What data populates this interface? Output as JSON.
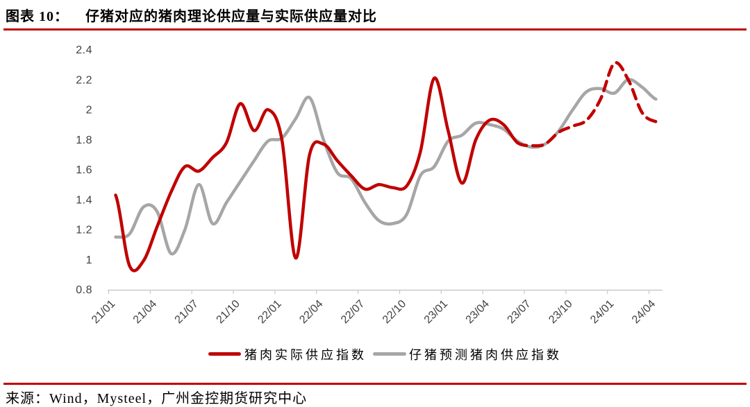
{
  "header": {
    "figure_label": "图表 10：",
    "title": "仔猪对应的猪肉理论供应量与实际供应量对比"
  },
  "source": {
    "text": "来源：Wind，Mysteel，广州金控期货研究中心"
  },
  "colors": {
    "accent_red": "#c00000",
    "series_actual": "#c00000",
    "series_forecast": "#a6a6a6",
    "axis_line": "#c9c9c9",
    "tick_label": "#3f3f3f"
  },
  "chart_data": {
    "type": "line",
    "x": [
      "21/01",
      "21/02",
      "21/03",
      "21/04",
      "21/05",
      "21/06",
      "21/07",
      "21/08",
      "21/09",
      "21/10",
      "21/11",
      "21/12",
      "22/01",
      "22/02",
      "22/03",
      "22/04",
      "22/05",
      "22/06",
      "22/07",
      "22/08",
      "22/09",
      "22/10",
      "22/11",
      "22/12",
      "23/01",
      "23/02",
      "23/03",
      "23/04",
      "23/05",
      "23/06",
      "23/07",
      "23/08",
      "23/09",
      "23/10",
      "23/11",
      "23/12",
      "24/01",
      "24/02",
      "24/03",
      "24/04"
    ],
    "x_tick_labels": [
      "21/01",
      "21/04",
      "21/07",
      "21/10",
      "22/01",
      "22/04",
      "22/07",
      "22/10",
      "23/01",
      "23/04",
      "23/07",
      "23/10",
      "24/01",
      "24/04"
    ],
    "ylim": [
      0.8,
      2.4
    ],
    "y_ticks": [
      2.4,
      2.2,
      2,
      1.8,
      1.6,
      1.4,
      1.2,
      1,
      0.8
    ],
    "grid": false,
    "legend_position": "bottom",
    "series": [
      {
        "name": "猪肉实际供应指数",
        "color": "#c00000",
        "style": "solid-then-dashed",
        "dash_from_index": 29,
        "values": [
          1.43,
          0.96,
          0.99,
          1.22,
          1.45,
          1.62,
          1.59,
          1.68,
          1.78,
          2.04,
          1.86,
          2.0,
          1.8,
          1.01,
          1.7,
          1.77,
          1.66,
          1.56,
          1.47,
          1.5,
          1.48,
          1.49,
          1.72,
          2.21,
          1.86,
          1.51,
          1.8,
          1.93,
          1.9,
          1.78,
          1.76,
          1.77,
          1.85,
          1.89,
          1.93,
          2.07,
          2.31,
          2.2,
          1.98,
          1.92
        ]
      },
      {
        "name": "仔猪预测猪肉供应指数",
        "color": "#a6a6a6",
        "style": "solid",
        "values": [
          1.15,
          1.17,
          1.35,
          1.32,
          1.04,
          1.2,
          1.5,
          1.24,
          1.38,
          1.52,
          1.66,
          1.79,
          1.81,
          1.94,
          2.08,
          1.8,
          1.58,
          1.54,
          1.38,
          1.26,
          1.24,
          1.3,
          1.56,
          1.62,
          1.79,
          1.83,
          1.91,
          1.9,
          1.87,
          1.79,
          1.75,
          1.77,
          1.86,
          2.0,
          2.12,
          2.14,
          2.11,
          2.2,
          2.15,
          2.07
        ]
      }
    ]
  }
}
